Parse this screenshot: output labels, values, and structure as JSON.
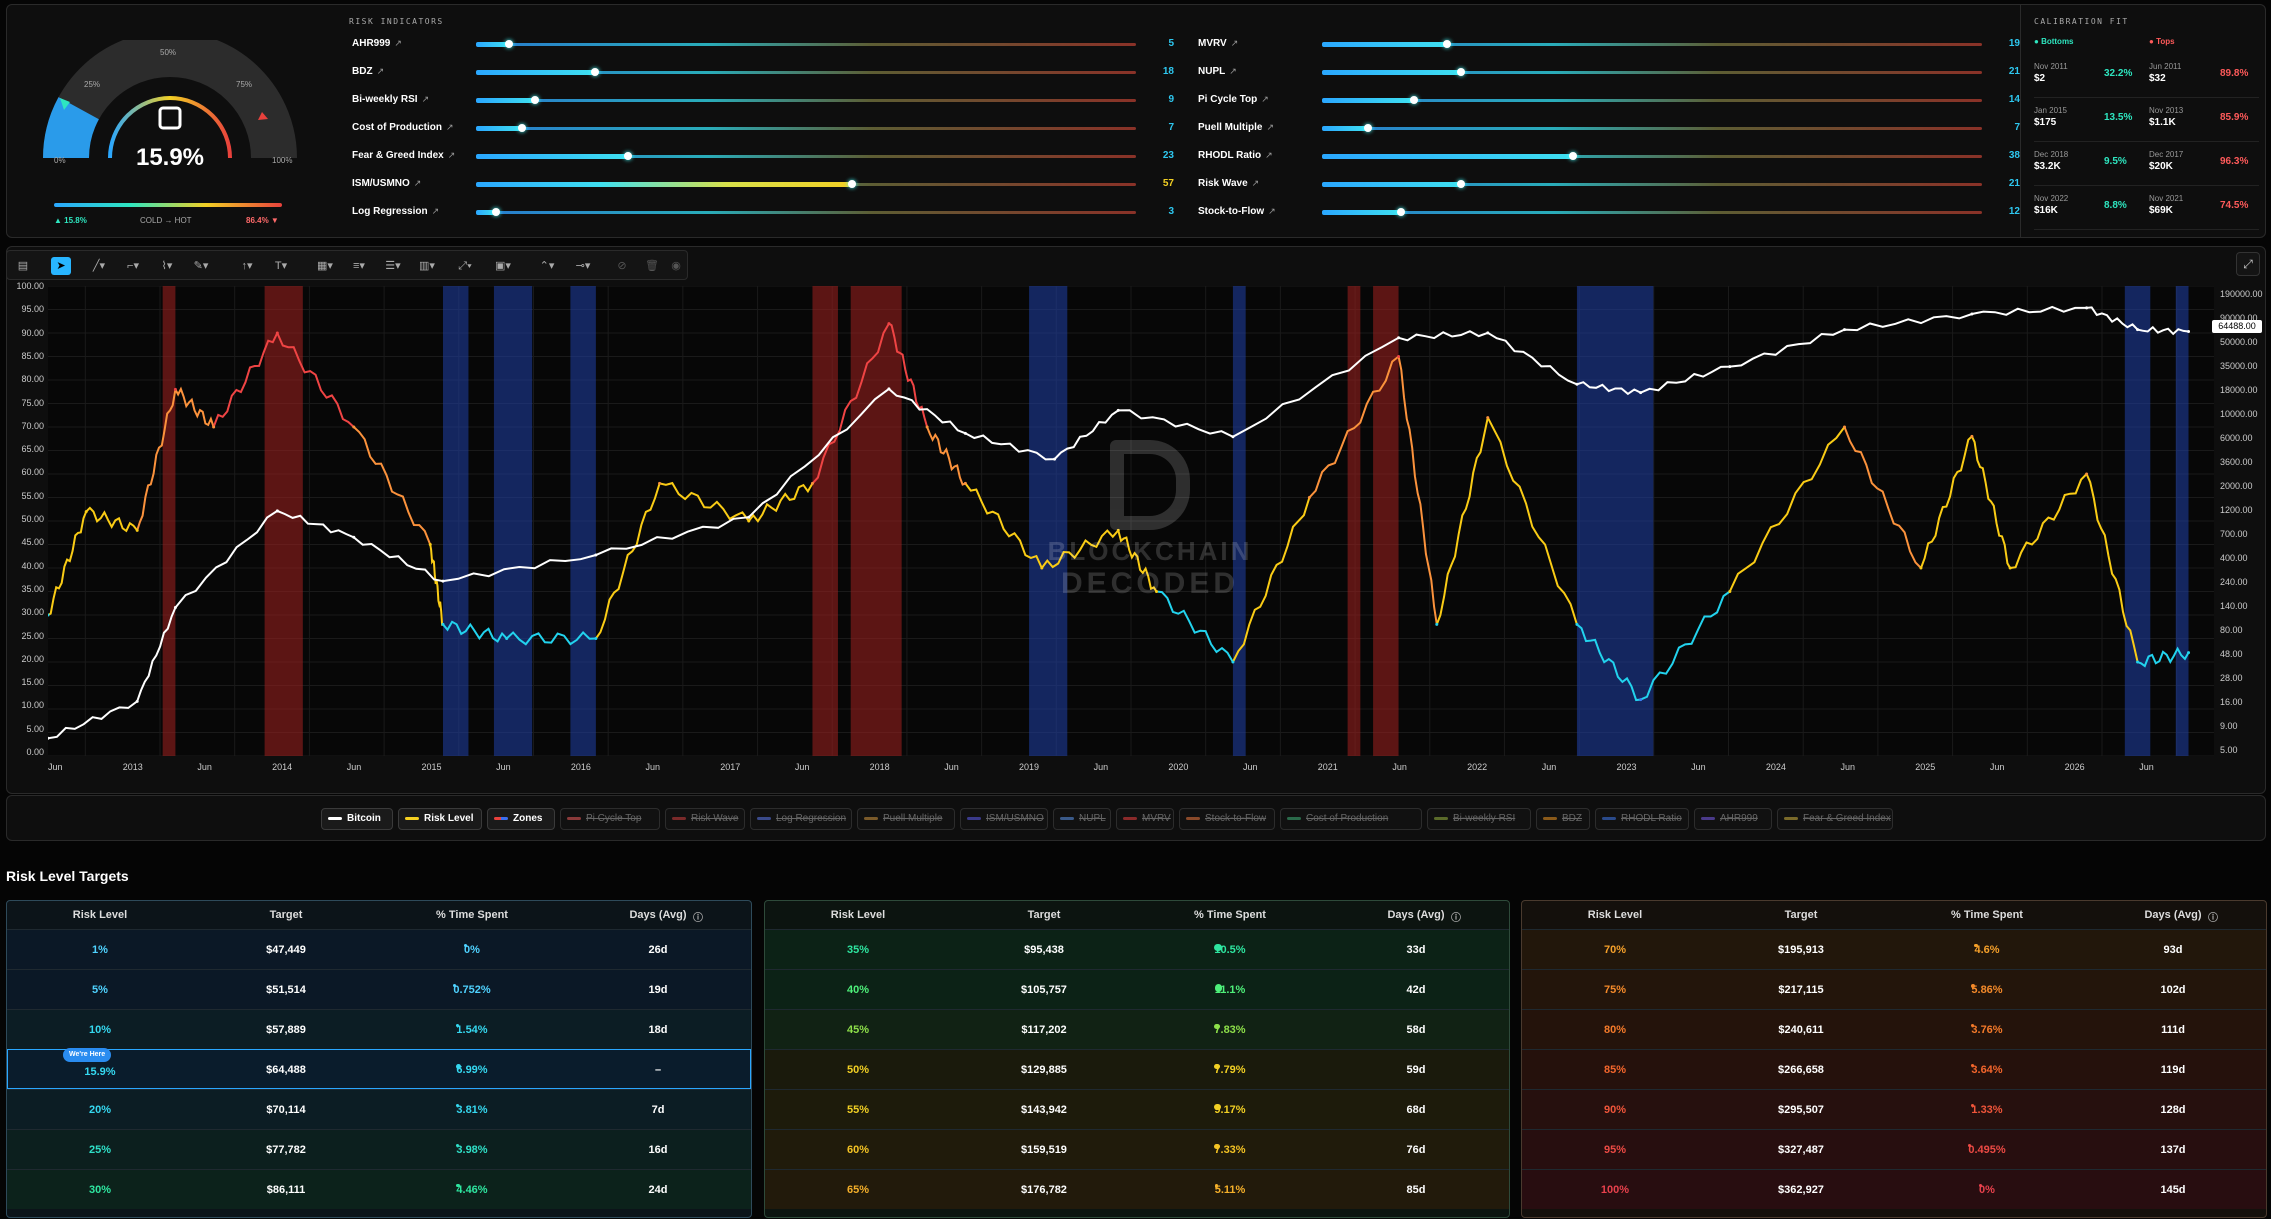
{
  "gauge": {
    "percent": "15.9%",
    "marks": [
      "0%",
      "25%",
      "50%",
      "75%",
      "100%"
    ],
    "value": 15.9,
    "cold_label": "COLD → HOT",
    "low": "▲ 15.8%",
    "high": "86.4% ▼"
  },
  "risk_indicators": {
    "title": "RISK INDICATORS",
    "left": [
      {
        "name": "AHR999",
        "value": 5
      },
      {
        "name": "BDZ",
        "value": 18
      },
      {
        "name": "Bi-weekly RSI",
        "value": 9
      },
      {
        "name": "Cost of Production",
        "value": 7
      },
      {
        "name": "Fear & Greed Index",
        "value": 23
      },
      {
        "name": "ISM/USMNO",
        "value": 57
      },
      {
        "name": "Log Regression",
        "value": 3
      }
    ],
    "right": [
      {
        "name": "MVRV",
        "value": 19
      },
      {
        "name": "NUPL",
        "value": 21
      },
      {
        "name": "Pi Cycle Top",
        "value": 14
      },
      {
        "name": "Puell Multiple",
        "value": 7
      },
      {
        "name": "RHODL Ratio",
        "value": 38
      },
      {
        "name": "Risk Wave",
        "value": 21
      },
      {
        "name": "Stock-to-Flow",
        "value": 12
      }
    ]
  },
  "calibration": {
    "title": "CALIBRATION FIT",
    "bottoms_label": "Bottoms",
    "tops_label": "Tops",
    "rows": [
      {
        "b_date": "Nov 2011",
        "b_price": "$2",
        "b_pct": "32.2%",
        "t_date": "Jun 2011",
        "t_price": "$32",
        "t_pct": "89.8%"
      },
      {
        "b_date": "Jan 2015",
        "b_price": "$175",
        "b_pct": "13.5%",
        "t_date": "Nov 2013",
        "t_price": "$1.1K",
        "t_pct": "85.9%"
      },
      {
        "b_date": "Dec 2018",
        "b_price": "$3.2K",
        "b_pct": "9.5%",
        "t_date": "Dec 2017",
        "t_price": "$20K",
        "t_pct": "96.3%"
      },
      {
        "b_date": "Nov 2022",
        "b_price": "$16K",
        "b_pct": "8.8%",
        "t_date": "Nov 2021",
        "t_price": "$69K",
        "t_pct": "74.5%"
      }
    ]
  },
  "chart_data": {
    "type": "line",
    "series": [
      {
        "name": "Bitcoin",
        "color": "#ffffff",
        "x": [
          "2012-06",
          "2013-01",
          "2013-04",
          "2013-12",
          "2014-06",
          "2015-01",
          "2016-01",
          "2017-01",
          "2017-12",
          "2018-06",
          "2019-01",
          "2019-06",
          "2020-03",
          "2021-04",
          "2021-11",
          "2022-06",
          "2022-11",
          "2023-06",
          "2024-03",
          "2025-01",
          "2025-10",
          "2026-02",
          "2026-06"
        ],
        "y": [
          6,
          14,
          120,
          1100,
          600,
          220,
          400,
          950,
          18000,
          6500,
          3600,
          11000,
          6000,
          58000,
          65000,
          20000,
          16500,
          30000,
          70000,
          100000,
          115000,
          70000,
          67000
        ]
      },
      {
        "name": "Risk Level",
        "x": [
          "2012-06",
          "2012-09",
          "2013-01",
          "2013-04",
          "2013-07",
          "2013-12",
          "2014-06",
          "2014-12",
          "2015-01",
          "2015-06",
          "2016-01",
          "2016-06",
          "2017-01",
          "2017-06",
          "2017-12",
          "2018-03",
          "2018-06",
          "2018-12",
          "2019-06",
          "2019-09",
          "2020-03",
          "2020-09",
          "2021-04",
          "2021-07",
          "2021-11",
          "2022-06",
          "2022-11",
          "2023-06",
          "2024-03",
          "2024-09",
          "2025-01",
          "2025-04",
          "2025-10",
          "2026-02",
          "2026-06"
        ],
        "y": [
          30,
          52,
          48,
          78,
          70,
          90,
          70,
          45,
          28,
          25,
          25,
          58,
          50,
          58,
          92,
          70,
          58,
          40,
          48,
          35,
          20,
          55,
          85,
          28,
          72,
          28,
          12,
          35,
          70,
          40,
          68,
          40,
          60,
          20,
          22
        ]
      }
    ],
    "zones": {
      "red": [
        [
          "2013-03",
          "2013-04"
        ],
        [
          "2013-11",
          "2014-02"
        ],
        [
          "2017-06",
          "2017-08"
        ],
        [
          "2017-09",
          "2018-01"
        ],
        [
          "2020-12",
          "2021-01"
        ],
        [
          "2021-02",
          "2021-04"
        ]
      ],
      "blue": [
        [
          "2015-01",
          "2015-03"
        ],
        [
          "2015-05",
          "2015-08"
        ],
        [
          "2015-11",
          "2016-01"
        ],
        [
          "2018-11",
          "2019-02"
        ],
        [
          "2020-03",
          "2020-04"
        ],
        [
          "2022-06",
          "2022-12"
        ],
        [
          "2026-01",
          "2026-03"
        ],
        [
          "2026-05",
          "2026-06"
        ]
      ]
    },
    "y_left": [
      "100.00",
      "95.00",
      "90.00",
      "85.00",
      "80.00",
      "75.00",
      "70.00",
      "65.00",
      "60.00",
      "55.00",
      "50.00",
      "45.00",
      "40.00",
      "35.00",
      "30.00",
      "25.00",
      "20.00",
      "15.00",
      "10.00",
      "5.00",
      "0.00"
    ],
    "y_right": [
      "190000.00",
      "90000.00",
      "50000.00",
      "35000.00",
      "18000.00",
      "10000.00",
      "6000.00",
      "3600.00",
      "2000.00",
      "1200.00",
      "700.00",
      "400.00",
      "240.00",
      "140.00",
      "80.00",
      "48.00",
      "28.00",
      "16.00",
      "9.00",
      "5.00"
    ],
    "price_tag": "64488.00",
    "x_labels": [
      "Jun",
      "2013",
      "Jun",
      "2014",
      "Jun",
      "2015",
      "Jun",
      "2016",
      "Jun",
      "2017",
      "Jun",
      "2018",
      "Jun",
      "2019",
      "Jun",
      "2020",
      "Jun",
      "2021",
      "Jun",
      "2022",
      "Jun",
      "2023",
      "Jun",
      "2024",
      "Jun",
      "2025",
      "Jun",
      "2026",
      "Jun"
    ],
    "watermark_1": "BLOCKCHAIN",
    "watermark_2": "DECODED",
    "ylim_left": [
      0,
      100
    ],
    "log_scale_right": true
  },
  "toolbar": {
    "buttons": [
      "layout",
      "cursor",
      "trend",
      "rect",
      "path",
      "brush",
      "arrow",
      "text",
      "measure",
      "fib",
      "pattern",
      "shapes",
      "projection",
      "forecast",
      "magnet",
      "lock",
      "trash",
      "eye"
    ]
  },
  "legend": {
    "items": [
      {
        "label": "Bitcoin",
        "on": true,
        "color": "#ffffff"
      },
      {
        "label": "Risk Level",
        "on": true,
        "color": "#f5d020"
      },
      {
        "label": "Zones",
        "on": true,
        "color": "#3b6ef0"
      },
      {
        "label": "Pi Cycle Top",
        "on": false,
        "color": "#8a3a3a"
      },
      {
        "label": "Risk Wave",
        "on": false,
        "color": "#7a2a2a"
      },
      {
        "label": "Log Regression",
        "on": false,
        "color": "#3a4a8a"
      },
      {
        "label": "Puell Multiple",
        "on": false,
        "color": "#7a5a2a"
      },
      {
        "label": "ISM/USMNO",
        "on": false,
        "color": "#3a3a8a"
      },
      {
        "label": "NUPL",
        "on": false,
        "color": "#3a5a8a"
      },
      {
        "label": "MVRV",
        "on": false,
        "color": "#8a2a2a"
      },
      {
        "label": "Stock-to-Flow",
        "on": false,
        "color": "#8a4a2a"
      },
      {
        "label": "Cost of Production",
        "on": false,
        "color": "#2a6a4a"
      },
      {
        "label": "Bi-weekly RSI",
        "on": false,
        "color": "#5a6a2a"
      },
      {
        "label": "BDZ",
        "on": false,
        "color": "#8a5a1a"
      },
      {
        "label": "RHODL Ratio",
        "on": false,
        "color": "#2a4a8a"
      },
      {
        "label": "AHR999",
        "on": false,
        "color": "#4a3a8a"
      },
      {
        "label": "Fear & Greed Index",
        "on": false,
        "color": "#7a6a2a"
      }
    ]
  },
  "targets": {
    "title": "Risk Level Targets",
    "headers": [
      "Risk Level",
      "Target",
      "% Time Spent",
      "Days (Avg)"
    ],
    "here_badge": "We're Here",
    "tables": [
      {
        "rows": [
          {
            "level": "1%",
            "target": "$47,449",
            "time": "0%",
            "days": "26d"
          },
          {
            "level": "5%",
            "target": "$51,514",
            "time": "0.752%",
            "days": "19d"
          },
          {
            "level": "10%",
            "target": "$57,889",
            "time": "1.54%",
            "days": "18d"
          },
          {
            "level": "15.9%",
            "target": "$64,488",
            "time": "6.99%",
            "days": "–",
            "current": true
          },
          {
            "level": "20%",
            "target": "$70,114",
            "time": "3.81%",
            "days": "7d"
          },
          {
            "level": "25%",
            "target": "$77,782",
            "time": "3.98%",
            "days": "16d"
          },
          {
            "level": "30%",
            "target": "$86,111",
            "time": "4.46%",
            "days": "24d"
          }
        ]
      },
      {
        "rows": [
          {
            "level": "35%",
            "target": "$95,438",
            "time": "10.5%",
            "days": "33d"
          },
          {
            "level": "40%",
            "target": "$105,757",
            "time": "11.1%",
            "days": "42d"
          },
          {
            "level": "45%",
            "target": "$117,202",
            "time": "7.83%",
            "days": "58d"
          },
          {
            "level": "50%",
            "target": "$129,885",
            "time": "7.79%",
            "days": "59d"
          },
          {
            "level": "55%",
            "target": "$143,942",
            "time": "9.17%",
            "days": "68d"
          },
          {
            "level": "60%",
            "target": "$159,519",
            "time": "7.33%",
            "days": "76d"
          },
          {
            "level": "65%",
            "target": "$176,782",
            "time": "5.11%",
            "days": "85d"
          }
        ]
      },
      {
        "rows": [
          {
            "level": "70%",
            "target": "$195,913",
            "time": "4.6%",
            "days": "93d"
          },
          {
            "level": "75%",
            "target": "$217,115",
            "time": "5.86%",
            "days": "102d"
          },
          {
            "level": "80%",
            "target": "$240,611",
            "time": "3.76%",
            "days": "111d"
          },
          {
            "level": "85%",
            "target": "$266,658",
            "time": "3.64%",
            "days": "119d"
          },
          {
            "level": "90%",
            "target": "$295,507",
            "time": "1.33%",
            "days": "128d"
          },
          {
            "level": "95%",
            "target": "$327,487",
            "time": "0.495%",
            "days": "137d"
          },
          {
            "level": "100%",
            "target": "$362,927",
            "time": "0%",
            "days": "145d"
          }
        ]
      }
    ]
  }
}
